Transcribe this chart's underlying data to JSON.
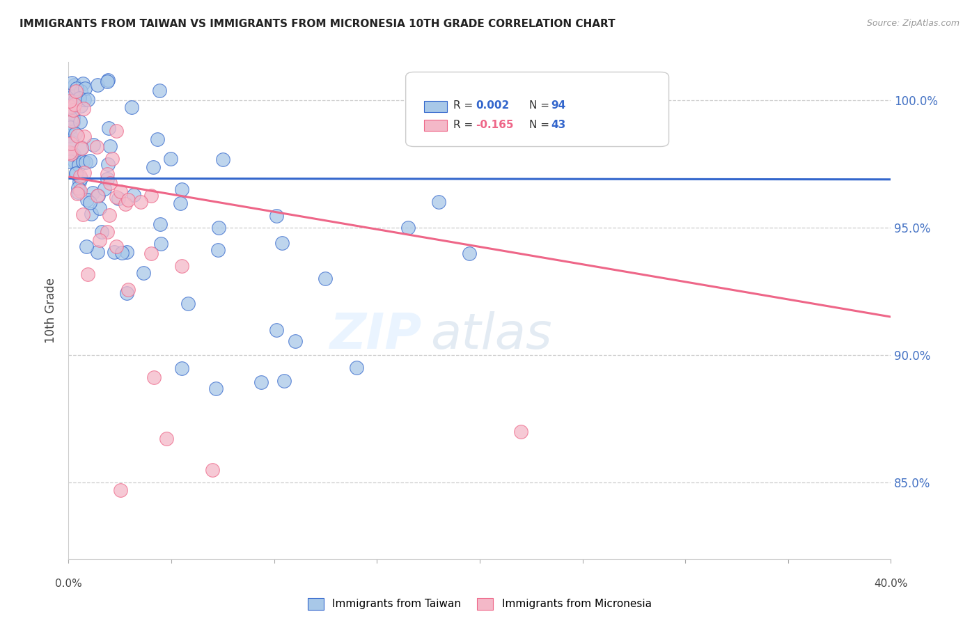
{
  "title": "IMMIGRANTS FROM TAIWAN VS IMMIGRANTS FROM MICRONESIA 10TH GRADE CORRELATION CHART",
  "source": "Source: ZipAtlas.com",
  "ylabel": "10th Grade",
  "xlim": [
    0.0,
    40.0
  ],
  "ylim": [
    82.0,
    101.5
  ],
  "yticks": [
    85.0,
    90.0,
    95.0,
    100.0
  ],
  "ytick_labels": [
    "85.0%",
    "90.0%",
    "95.0%",
    "100.0%"
  ],
  "legend_taiwan": "Immigrants from Taiwan",
  "legend_micronesia": "Immigrants from Micronesia",
  "R_taiwan": "0.002",
  "N_taiwan": "94",
  "R_micronesia": "-0.165",
  "N_micronesia": "43",
  "color_taiwan": "#a8c8e8",
  "color_micronesia": "#f4b8c8",
  "color_taiwan_line": "#3366cc",
  "color_micronesia_line": "#ee6688",
  "color_dashed_grid": "#cccccc",
  "watermark_zip": "ZIP",
  "watermark_atlas": "atlas"
}
